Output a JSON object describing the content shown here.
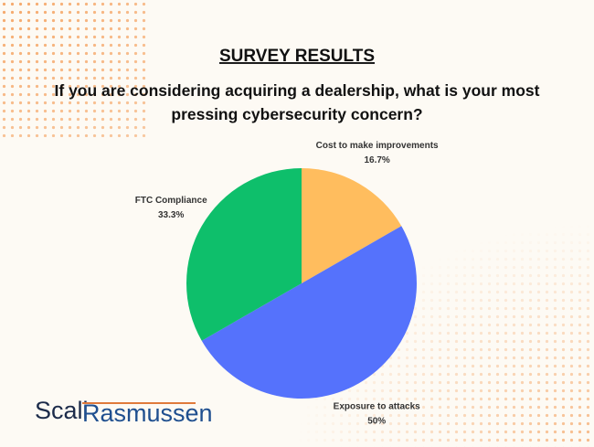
{
  "chart_data": {
    "type": "pie",
    "title": "SURVEY RESULTS",
    "subtitle": "If you are considering acquiring a dealership, what is your most pressing cybersecurity concern?",
    "categories": [
      "Cost to make improvements",
      "Exposure to attacks",
      "FTC Compliance"
    ],
    "values": [
      16.7,
      50,
      33.3
    ],
    "value_labels": [
      "16.7%",
      "50%",
      "33.3%"
    ],
    "colors": [
      "#ffbd5e",
      "#5572fc",
      "#0ebf6b"
    ]
  },
  "logo": {
    "first": "Scali",
    "second": "Rasmussen"
  }
}
